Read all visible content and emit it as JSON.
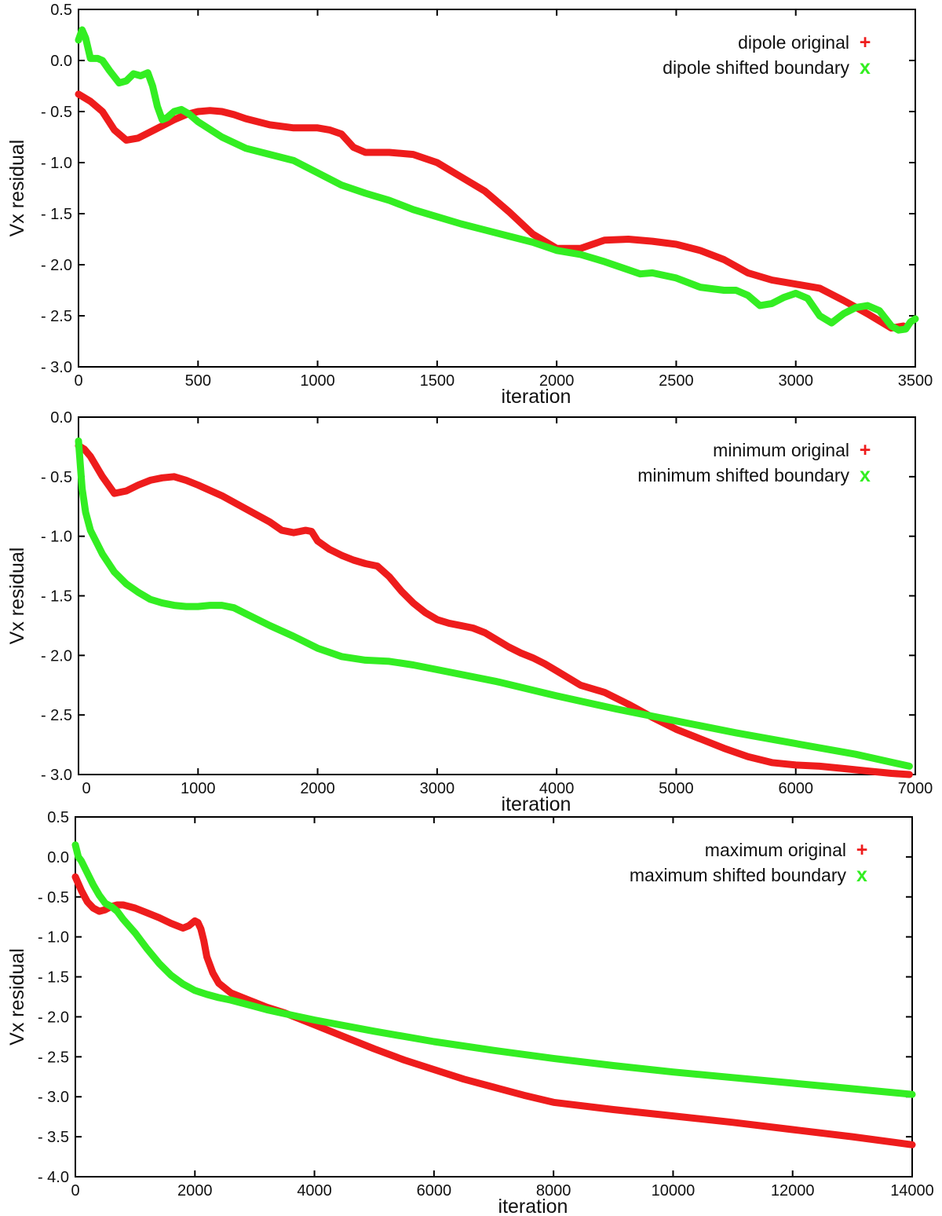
{
  "colors": {
    "original": "#ee1c1c",
    "shifted": "#33ee22",
    "frame": "#000000"
  },
  "chart_data": [
    {
      "type": "line",
      "xlabel": "iteration",
      "ylabel": "Vx residual",
      "xlim": [
        0,
        3500
      ],
      "ylim": [
        -3.0,
        0.5
      ],
      "xticks": [
        0,
        500,
        1000,
        1500,
        2000,
        2500,
        3000,
        3500
      ],
      "yticks": [
        0.5,
        0.0,
        -0.5,
        -1.0,
        -1.5,
        -2.0,
        -2.5,
        -3.0
      ],
      "legend_position": "top-right",
      "series": [
        {
          "name": "dipole original",
          "marker": "+",
          "color": "#ee1c1c",
          "x": [
            0,
            50,
            100,
            150,
            200,
            250,
            300,
            350,
            400,
            450,
            500,
            550,
            600,
            650,
            700,
            800,
            900,
            1000,
            1050,
            1100,
            1150,
            1200,
            1300,
            1400,
            1500,
            1600,
            1700,
            1800,
            1900,
            2000,
            2100,
            2150,
            2200,
            2300,
            2400,
            2500,
            2600,
            2700,
            2800,
            2900,
            3000,
            3100,
            3200,
            3300,
            3400,
            3450
          ],
          "y": [
            -0.33,
            -0.4,
            -0.5,
            -0.68,
            -0.78,
            -0.76,
            -0.7,
            -0.64,
            -0.58,
            -0.53,
            -0.5,
            -0.49,
            -0.5,
            -0.53,
            -0.57,
            -0.63,
            -0.66,
            -0.66,
            -0.68,
            -0.72,
            -0.85,
            -0.9,
            -0.9,
            -0.92,
            -1.0,
            -1.14,
            -1.28,
            -1.48,
            -1.7,
            -1.84,
            -1.84,
            -1.8,
            -1.76,
            -1.75,
            -1.77,
            -1.8,
            -1.86,
            -1.95,
            -2.08,
            -2.15,
            -2.19,
            -2.23,
            -2.35,
            -2.48,
            -2.62,
            -2.6
          ]
        },
        {
          "name": "dipole shifted boundary",
          "marker": "x",
          "color": "#33ee22",
          "x": [
            0,
            15,
            30,
            50,
            80,
            100,
            130,
            170,
            200,
            230,
            260,
            290,
            310,
            330,
            350,
            370,
            400,
            430,
            460,
            500,
            600,
            700,
            800,
            900,
            1000,
            1100,
            1200,
            1300,
            1400,
            1500,
            1600,
            1700,
            1800,
            1900,
            2000,
            2100,
            2200,
            2300,
            2350,
            2400,
            2500,
            2600,
            2700,
            2750,
            2800,
            2850,
            2900,
            2950,
            3000,
            3050,
            3100,
            3150,
            3200,
            3250,
            3300,
            3350,
            3400,
            3430,
            3460,
            3480,
            3500
          ],
          "y": [
            0.2,
            0.3,
            0.22,
            0.02,
            0.02,
            0.0,
            -0.1,
            -0.22,
            -0.2,
            -0.13,
            -0.15,
            -0.12,
            -0.25,
            -0.45,
            -0.58,
            -0.56,
            -0.5,
            -0.48,
            -0.52,
            -0.6,
            -0.75,
            -0.86,
            -0.92,
            -0.98,
            -1.1,
            -1.22,
            -1.3,
            -1.37,
            -1.46,
            -1.53,
            -1.6,
            -1.66,
            -1.72,
            -1.78,
            -1.86,
            -1.9,
            -1.97,
            -2.05,
            -2.09,
            -2.08,
            -2.13,
            -2.22,
            -2.25,
            -2.25,
            -2.3,
            -2.4,
            -2.38,
            -2.32,
            -2.28,
            -2.33,
            -2.5,
            -2.57,
            -2.48,
            -2.42,
            -2.4,
            -2.45,
            -2.6,
            -2.64,
            -2.63,
            -2.56,
            -2.53
          ]
        }
      ]
    },
    {
      "type": "line",
      "xlabel": "iteration",
      "ylabel": "Vx residual",
      "xlim": [
        0,
        7000
      ],
      "ylim": [
        -3.0,
        0.0
      ],
      "xticks": [
        1000,
        2000,
        3000,
        4000,
        5000,
        6000,
        7000
      ],
      "extra_xtick_label": "0",
      "yticks": [
        0.0,
        -0.5,
        -1.0,
        -1.5,
        -2.0,
        -2.5,
        -3.0
      ],
      "legend_position": "top-right",
      "series": [
        {
          "name": "minimum original",
          "marker": "+",
          "color": "#ee1c1c",
          "x": [
            0,
            50,
            100,
            200,
            300,
            400,
            500,
            600,
            700,
            800,
            900,
            1000,
            1200,
            1400,
            1600,
            1700,
            1800,
            1900,
            1950,
            2000,
            2100,
            2200,
            2300,
            2400,
            2500,
            2600,
            2700,
            2800,
            2900,
            3000,
            3100,
            3200,
            3300,
            3400,
            3500,
            3600,
            3700,
            3800,
            3900,
            4000,
            4200,
            4400,
            4600,
            4800,
            5000,
            5200,
            5400,
            5600,
            5800,
            6000,
            6200,
            6400,
            6600,
            6800,
            6950
          ],
          "y": [
            -0.24,
            -0.27,
            -0.33,
            -0.5,
            -0.64,
            -0.62,
            -0.57,
            -0.53,
            -0.51,
            -0.5,
            -0.53,
            -0.57,
            -0.66,
            -0.77,
            -0.88,
            -0.95,
            -0.97,
            -0.95,
            -0.96,
            -1.04,
            -1.11,
            -1.16,
            -1.2,
            -1.23,
            -1.25,
            -1.34,
            -1.46,
            -1.56,
            -1.64,
            -1.7,
            -1.73,
            -1.75,
            -1.77,
            -1.81,
            -1.87,
            -1.93,
            -1.98,
            -2.02,
            -2.07,
            -2.13,
            -2.25,
            -2.31,
            -2.41,
            -2.52,
            -2.62,
            -2.7,
            -2.78,
            -2.85,
            -2.9,
            -2.92,
            -2.93,
            -2.95,
            -2.97,
            -2.99,
            -3.0
          ]
        },
        {
          "name": "minimum shifted boundary",
          "marker": "x",
          "color": "#33ee22",
          "x": [
            0,
            30,
            60,
            100,
            200,
            300,
            400,
            500,
            600,
            700,
            800,
            900,
            1000,
            1100,
            1200,
            1300,
            1400,
            1600,
            1800,
            2000,
            2200,
            2400,
            2600,
            2800,
            3000,
            3500,
            4000,
            4500,
            5000,
            5500,
            6000,
            6500,
            6950
          ],
          "y": [
            -0.2,
            -0.6,
            -0.8,
            -0.95,
            -1.15,
            -1.3,
            -1.4,
            -1.47,
            -1.53,
            -1.56,
            -1.58,
            -1.59,
            -1.59,
            -1.58,
            -1.58,
            -1.6,
            -1.65,
            -1.75,
            -1.84,
            -1.94,
            -2.01,
            -2.04,
            -2.05,
            -2.08,
            -2.12,
            -2.22,
            -2.34,
            -2.45,
            -2.55,
            -2.65,
            -2.74,
            -2.83,
            -2.93
          ]
        }
      ]
    },
    {
      "type": "line",
      "xlabel": "iteration",
      "ylabel": "Vx residual",
      "xlim": [
        0,
        14000
      ],
      "ylim": [
        -4.0,
        0.5
      ],
      "xticks": [
        0,
        2000,
        4000,
        6000,
        8000,
        10000,
        12000,
        14000
      ],
      "yticks": [
        0.5,
        0.0,
        -0.5,
        -1.0,
        -1.5,
        -2.0,
        -2.5,
        -3.0,
        -3.5,
        -4.0
      ],
      "legend_position": "top-right",
      "series": [
        {
          "name": "maximum original",
          "marker": "+",
          "color": "#ee1c1c",
          "x": [
            0,
            100,
            200,
            300,
            400,
            500,
            600,
            700,
            800,
            1000,
            1200,
            1400,
            1600,
            1700,
            1800,
            1900,
            2000,
            2050,
            2100,
            2150,
            2200,
            2300,
            2400,
            2600,
            2800,
            3000,
            3200,
            3500,
            4000,
            4500,
            5000,
            5500,
            6000,
            6500,
            7000,
            7500,
            8000,
            9000,
            10000,
            11000,
            12000,
            13000,
            14000
          ],
          "y": [
            -0.25,
            -0.42,
            -0.56,
            -0.64,
            -0.68,
            -0.66,
            -0.62,
            -0.6,
            -0.6,
            -0.64,
            -0.7,
            -0.76,
            -0.83,
            -0.86,
            -0.89,
            -0.86,
            -0.8,
            -0.82,
            -0.9,
            -1.05,
            -1.25,
            -1.45,
            -1.58,
            -1.7,
            -1.76,
            -1.82,
            -1.88,
            -1.95,
            -2.1,
            -2.25,
            -2.4,
            -2.54,
            -2.66,
            -2.78,
            -2.88,
            -2.98,
            -3.07,
            -3.16,
            -3.24,
            -3.32,
            -3.41,
            -3.5,
            -3.6
          ]
        },
        {
          "name": "maximum shifted boundary",
          "marker": "x",
          "color": "#33ee22",
          "x": [
            0,
            50,
            100,
            200,
            300,
            400,
            500,
            600,
            700,
            800,
            1000,
            1200,
            1400,
            1600,
            1800,
            2000,
            2200,
            2400,
            2600,
            2800,
            3000,
            3200,
            3500,
            4000,
            5000,
            6000,
            7000,
            8000,
            9000,
            10000,
            11000,
            12000,
            13000,
            14000
          ],
          "y": [
            0.15,
            0.0,
            -0.05,
            -0.2,
            -0.35,
            -0.48,
            -0.58,
            -0.62,
            -0.68,
            -0.78,
            -0.95,
            -1.15,
            -1.33,
            -1.48,
            -1.59,
            -1.67,
            -1.72,
            -1.76,
            -1.79,
            -1.83,
            -1.87,
            -1.91,
            -1.96,
            -2.04,
            -2.18,
            -2.31,
            -2.42,
            -2.52,
            -2.61,
            -2.69,
            -2.76,
            -2.83,
            -2.9,
            -2.97
          ]
        }
      ]
    }
  ]
}
